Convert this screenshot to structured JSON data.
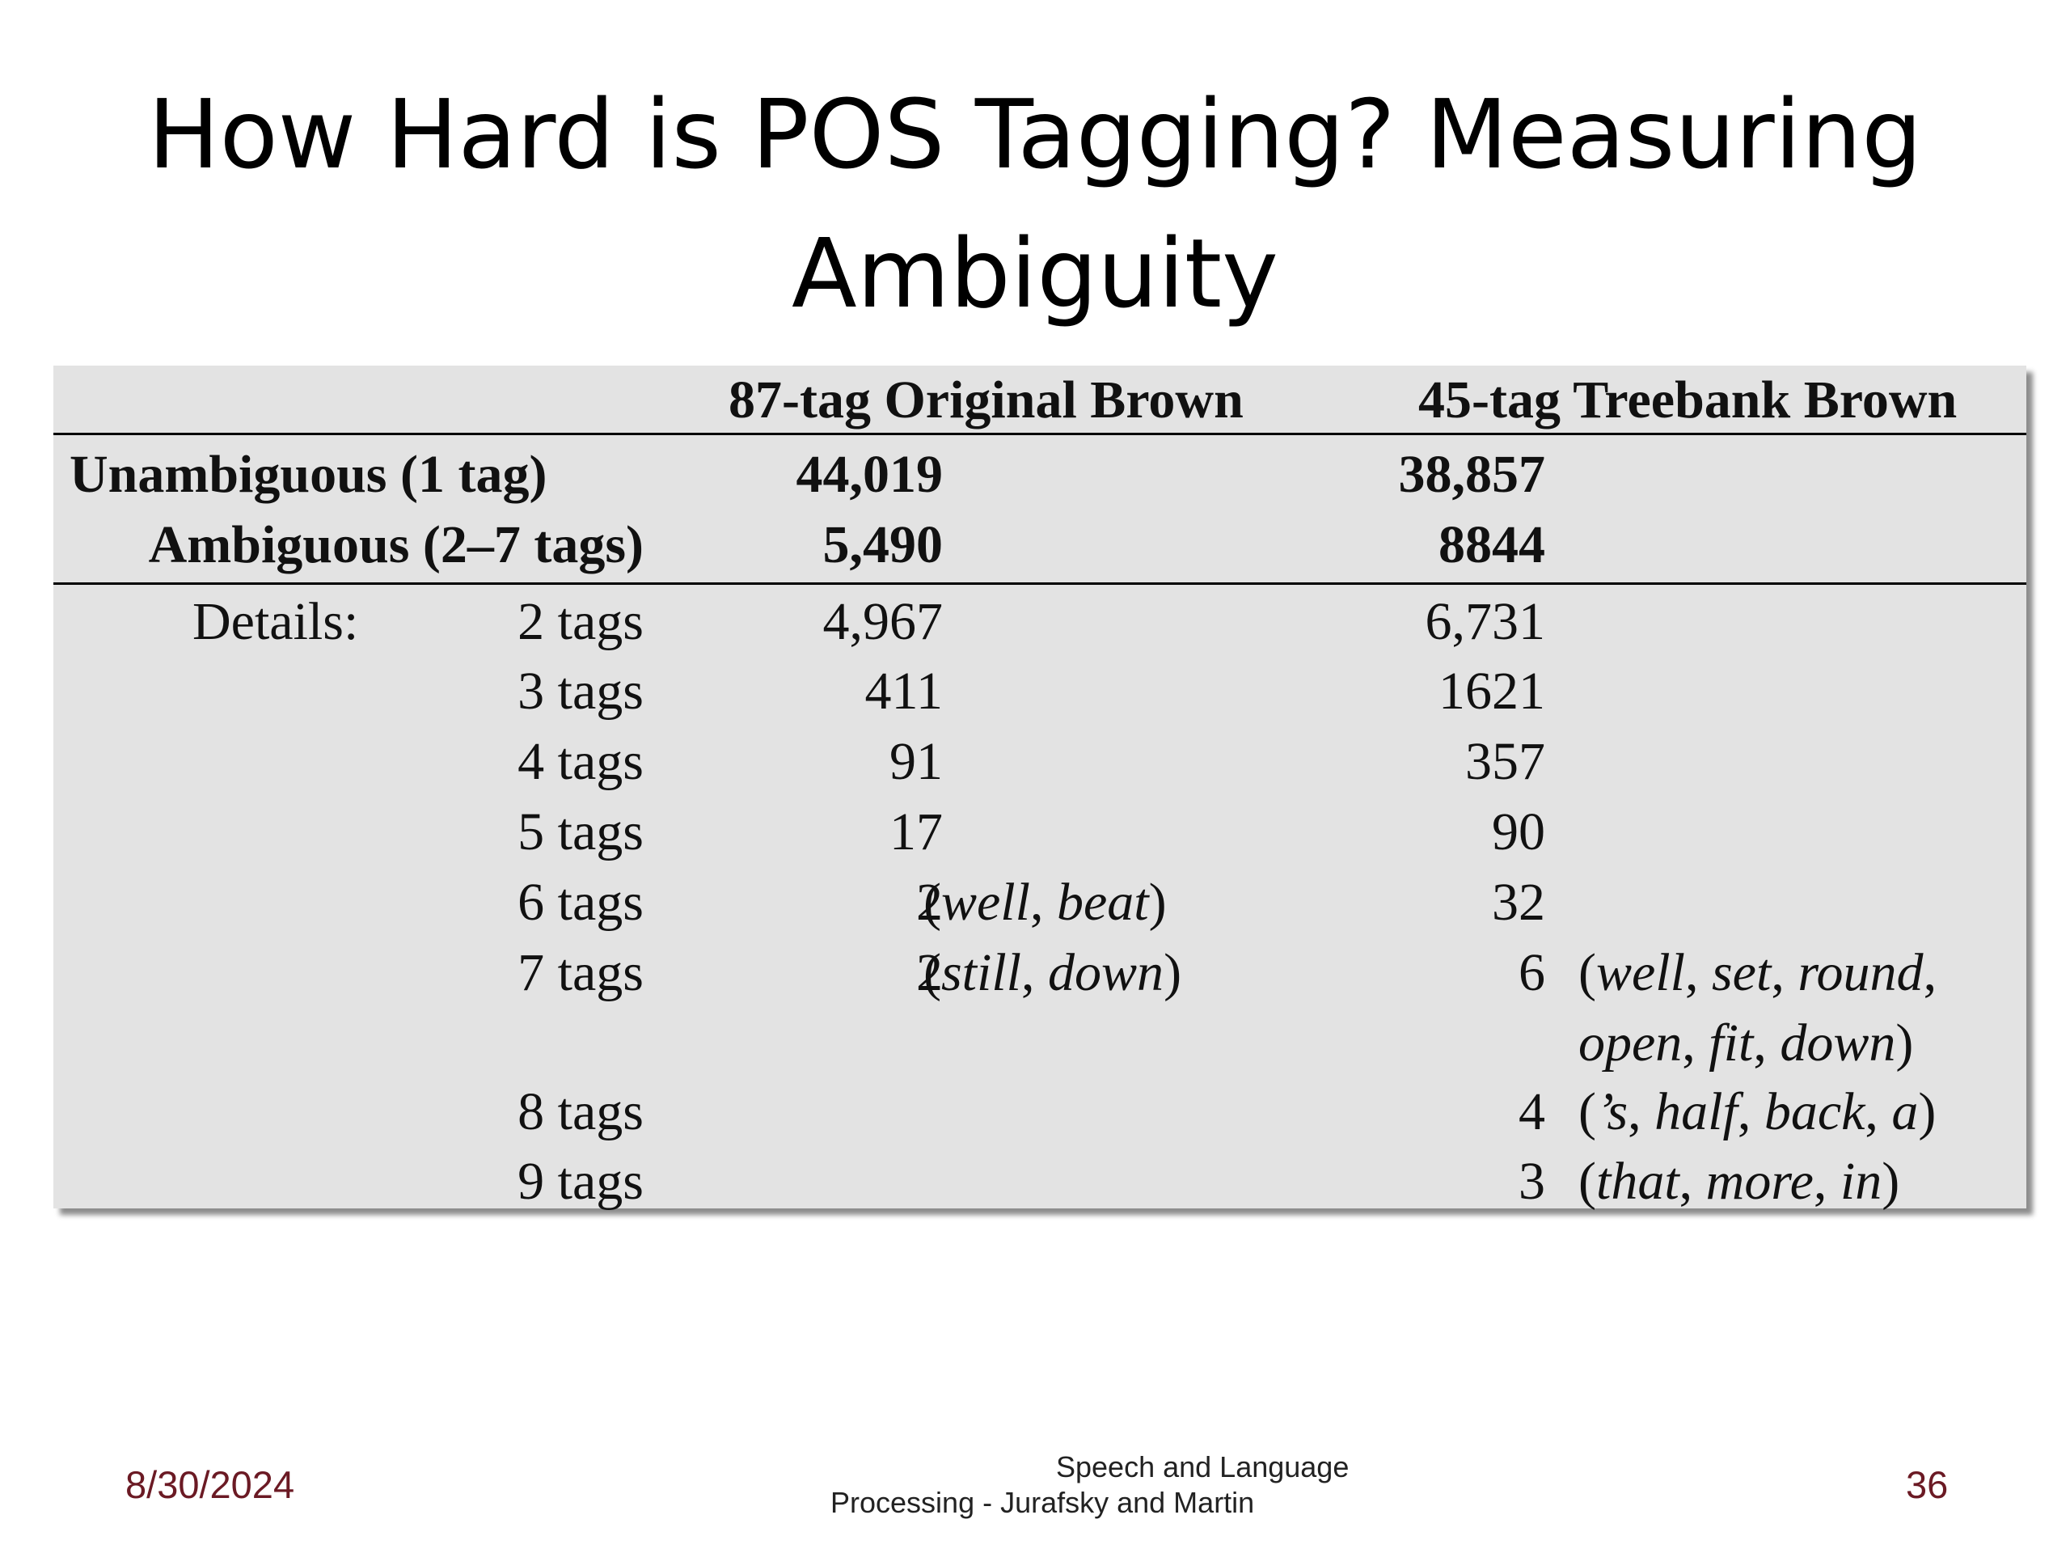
{
  "slide": {
    "title": "How Hard is POS Tagging? Measuring Ambiguity"
  },
  "table": {
    "headers": {
      "col1": "87-tag Original Brown",
      "col2": "45-tag Treebank Brown"
    },
    "summary": [
      {
        "label": "Unambiguous (1 tag)",
        "col1": "44,019",
        "col2": "38,857"
      },
      {
        "label": "Ambiguous (2–7 tags)",
        "col1": "5,490",
        "col2": "8844"
      }
    ],
    "details_label": "Details:",
    "details": [
      {
        "tags": "2 tags",
        "col1": "4,967",
        "col1_ex": "",
        "col2": "6,731",
        "col2_ex": ""
      },
      {
        "tags": "3 tags",
        "col1": "411",
        "col1_ex": "",
        "col2": "1621",
        "col2_ex": ""
      },
      {
        "tags": "4 tags",
        "col1": "91",
        "col1_ex": "",
        "col2": "357",
        "col2_ex": ""
      },
      {
        "tags": "5 tags",
        "col1": "17",
        "col1_ex": "",
        "col2": "90",
        "col2_ex": ""
      },
      {
        "tags": "6 tags",
        "col1": "2",
        "col1_ex": "(well, beat)",
        "col2": "32",
        "col2_ex": ""
      },
      {
        "tags": "7 tags",
        "col1": "2",
        "col1_ex": "(still, down)",
        "col2": "6",
        "col2_ex": "(well, set, round,",
        "col2_ex_cont": "open, fit, down)"
      },
      {
        "tags": "8 tags",
        "col1": "",
        "col1_ex": "",
        "col2": "4",
        "col2_ex": "(’s, half, back, a)"
      },
      {
        "tags": "9 tags",
        "col1": "",
        "col1_ex": "",
        "col2": "3",
        "col2_ex": "(that, more, in)"
      }
    ]
  },
  "footer": {
    "date": "8/30/2024",
    "source_line1": "Speech and Language",
    "source_line2": "Processing - Jurafsky and Martin",
    "page_number": "36"
  }
}
